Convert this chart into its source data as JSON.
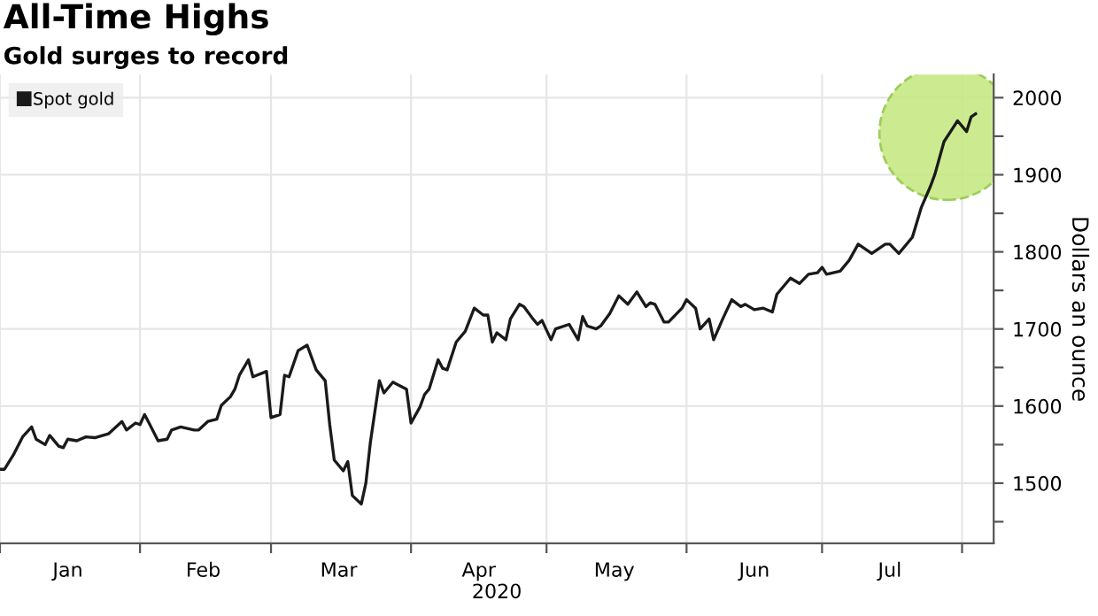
{
  "chart_data": {
    "type": "line",
    "title": "All-Time Highs",
    "subtitle": "Gold surges to record",
    "xlabel": "2020",
    "ylabel": "Dollars an ounce",
    "x": [
      "2020-01-01",
      "2020-01-02",
      "2020-01-04",
      "2020-01-06",
      "2020-01-08",
      "2020-01-09",
      "2020-01-11",
      "2020-01-12",
      "2020-01-14",
      "2020-01-15",
      "2020-01-16",
      "2020-01-18",
      "2020-01-20",
      "2020-01-22",
      "2020-01-25",
      "2020-01-28",
      "2020-01-29",
      "2020-01-31",
      "2020-02-01",
      "2020-02-02",
      "2020-02-03",
      "2020-02-05",
      "2020-02-07",
      "2020-02-08",
      "2020-02-10",
      "2020-02-13",
      "2020-02-14",
      "2020-02-16",
      "2020-02-18",
      "2020-02-19",
      "2020-02-21",
      "2020-02-22",
      "2020-02-23",
      "2020-02-25",
      "2020-02-26",
      "2020-02-29",
      "2020-03-01",
      "2020-03-03",
      "2020-03-04",
      "2020-03-05",
      "2020-03-07",
      "2020-03-09",
      "2020-03-11",
      "2020-03-13",
      "2020-03-14",
      "2020-03-15",
      "2020-03-17",
      "2020-03-18",
      "2020-03-19",
      "2020-03-21",
      "2020-03-22",
      "2020-03-23",
      "2020-03-25",
      "2020-03-26",
      "2020-03-28",
      "2020-03-29",
      "2020-03-31",
      "2020-04-01",
      "2020-04-03",
      "2020-04-04",
      "2020-04-05",
      "2020-04-07",
      "2020-04-08",
      "2020-04-09",
      "2020-04-11",
      "2020-04-13",
      "2020-04-15",
      "2020-04-17",
      "2020-04-18",
      "2020-04-19",
      "2020-04-20",
      "2020-04-22",
      "2020-04-23",
      "2020-04-25",
      "2020-04-26",
      "2020-04-28",
      "2020-04-29",
      "2020-04-30",
      "2020-05-02",
      "2020-05-03",
      "2020-05-06",
      "2020-05-08",
      "2020-05-09",
      "2020-05-10",
      "2020-05-12",
      "2020-05-13",
      "2020-05-15",
      "2020-05-17",
      "2020-05-19",
      "2020-05-21",
      "2020-05-23",
      "2020-05-24",
      "2020-05-25",
      "2020-05-27",
      "2020-05-28",
      "2020-05-31",
      "2020-06-01",
      "2020-06-03",
      "2020-06-04",
      "2020-06-06",
      "2020-06-07",
      "2020-06-09",
      "2020-06-11",
      "2020-06-13",
      "2020-06-14",
      "2020-06-16",
      "2020-06-18",
      "2020-06-20",
      "2020-06-21",
      "2020-06-24",
      "2020-06-26",
      "2020-06-28",
      "2020-06-30",
      "2020-07-01",
      "2020-07-02",
      "2020-07-05",
      "2020-07-07",
      "2020-07-09",
      "2020-07-12",
      "2020-07-15",
      "2020-07-16",
      "2020-07-18",
      "2020-07-21",
      "2020-07-23",
      "2020-07-25",
      "2020-07-26",
      "2020-07-28",
      "2020-07-30",
      "2020-07-31",
      "2020-08-02",
      "2020-08-03",
      "2020-08-04"
    ],
    "series": [
      {
        "name": "Spot gold",
        "color": "#1a1a1a",
        "values": [
          1518,
          1518,
          1537,
          1560,
          1573,
          1557,
          1550,
          1562,
          1548,
          1546,
          1557,
          1555,
          1560,
          1559,
          1564,
          1580,
          1569,
          1578,
          1576,
          1589,
          1578,
          1555,
          1557,
          1569,
          1573,
          1569,
          1569,
          1580,
          1583,
          1601,
          1612,
          1622,
          1640,
          1660,
          1638,
          1645,
          1585,
          1589,
          1640,
          1638,
          1672,
          1679,
          1647,
          1633,
          1576,
          1530,
          1516,
          1528,
          1484,
          1473,
          1500,
          1553,
          1633,
          1617,
          1631,
          1628,
          1622,
          1578,
          1599,
          1615,
          1622,
          1660,
          1649,
          1647,
          1683,
          1697,
          1727,
          1718,
          1718,
          1683,
          1695,
          1686,
          1713,
          1732,
          1729,
          1713,
          1706,
          1711,
          1686,
          1700,
          1706,
          1686,
          1716,
          1704,
          1700,
          1704,
          1720,
          1743,
          1732,
          1748,
          1729,
          1734,
          1732,
          1709,
          1709,
          1727,
          1738,
          1727,
          1700,
          1713,
          1686,
          1713,
          1738,
          1729,
          1732,
          1725,
          1727,
          1722,
          1745,
          1766,
          1759,
          1771,
          1773,
          1780,
          1771,
          1775,
          1789,
          1810,
          1798,
          1810,
          1810,
          1798,
          1819,
          1858,
          1885,
          1901,
          1943,
          1961,
          1970,
          1956,
          1975,
          1979
        ]
      }
    ],
    "xlim": [
      "2020-01-01",
      "2020-08-08"
    ],
    "xticks": [
      {
        "value": "2020-01-01",
        "label": null
      },
      {
        "value": "2020-01-16",
        "label": "Jan"
      },
      {
        "value": "2020-02-01",
        "label": null
      },
      {
        "value": "2020-02-15",
        "label": "Feb"
      },
      {
        "value": "2020-03-01",
        "label": null
      },
      {
        "value": "2020-03-16",
        "label": "Mar"
      },
      {
        "value": "2020-04-01",
        "label": null
      },
      {
        "value": "2020-04-16",
        "label": "Apr"
      },
      {
        "value": "2020-05-01",
        "label": null
      },
      {
        "value": "2020-05-16",
        "label": "May"
      },
      {
        "value": "2020-06-01",
        "label": null
      },
      {
        "value": "2020-06-16",
        "label": "Jun"
      },
      {
        "value": "2020-07-01",
        "label": null
      },
      {
        "value": "2020-07-16",
        "label": "Jul"
      },
      {
        "value": "2020-08-01",
        "label": null
      }
    ],
    "ylim": [
      1422,
      2030
    ],
    "yticks": [
      {
        "value": 1450,
        "label": null
      },
      1500,
      {
        "value": 1550,
        "label": null
      },
      1600,
      {
        "value": 1650,
        "label": null
      },
      1700,
      {
        "value": 1750,
        "label": null
      },
      1800,
      {
        "value": 1850,
        "label": null
      },
      1900,
      {
        "value": 1950,
        "label": null
      },
      2000
    ],
    "grid": true,
    "legend": "top left",
    "marker": "none",
    "line_style": "solid"
  }
}
